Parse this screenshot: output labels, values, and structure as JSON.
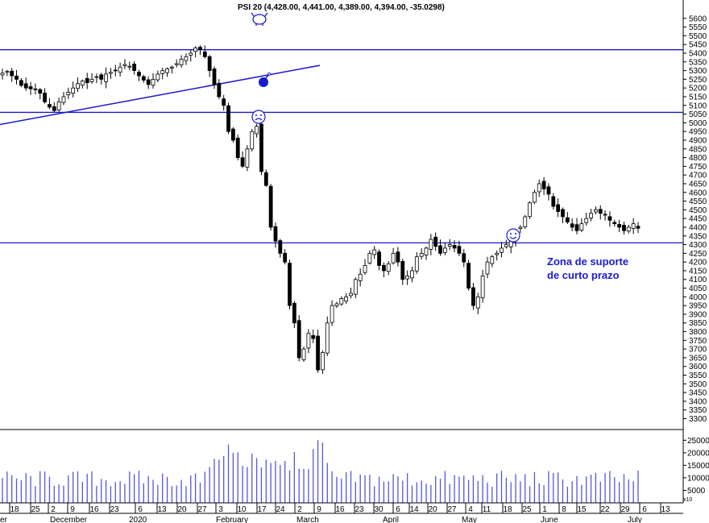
{
  "chart_data": {
    "type": "candlestick",
    "title": "PSI 20 (4,428.00, 4,441.00, 4,389.00, 4,394.00, -35.0298)",
    "price_axis": {
      "ylim": [
        3270,
        5650
      ],
      "ticks": [
        3300,
        3350,
        3400,
        3450,
        3500,
        3550,
        3600,
        3650,
        3700,
        3750,
        3800,
        3850,
        3900,
        3950,
        4000,
        4050,
        4100,
        4150,
        4200,
        4250,
        4300,
        4350,
        4400,
        4450,
        4500,
        4550,
        4600,
        4650,
        4700,
        4750,
        4800,
        4850,
        4900,
        4950,
        5000,
        5050,
        5100,
        5150,
        5200,
        5250,
        5300,
        5350,
        5400,
        5450,
        5500,
        5550,
        5600
      ]
    },
    "volume_axis": {
      "ylim": [
        0,
        28000
      ],
      "ticks": [
        5000,
        10000,
        15000,
        20000,
        25000
      ],
      "tick_labels": [
        "5000",
        "10000",
        "15000",
        "20000",
        "25000"
      ],
      "unit_label": "x10"
    },
    "x_day_ticks": [
      "18",
      "25",
      "2",
      "9",
      "16",
      "23",
      "6",
      "13",
      "20",
      "27",
      "3",
      "10",
      "17",
      "24",
      "2",
      "9",
      "16",
      "23",
      "30",
      "6",
      "14",
      "20",
      "27",
      "4",
      "11",
      "18",
      "25",
      "1",
      "8",
      "15",
      "22",
      "29",
      "6",
      "13"
    ],
    "x_month_labels": [
      "er",
      "December",
      "2020",
      "February",
      "March",
      "April",
      "May",
      "June",
      "July"
    ],
    "horizontal_lines": [
      5420,
      5060,
      4310
    ],
    "trendline": {
      "start": [
        "Nov 18 2019",
        4990
      ],
      "end": [
        "Feb 28 2020",
        5330
      ]
    },
    "annotations": {
      "support_label": [
        "Zona de suporte",
        "de curto prazo"
      ]
    },
    "series": {
      "close": [
        5285,
        5295,
        5270,
        5250,
        5215,
        5200,
        5195,
        5190,
        5170,
        5120,
        5090,
        5070,
        5120,
        5150,
        5175,
        5200,
        5225,
        5240,
        5230,
        5250,
        5265,
        5250,
        5280,
        5290,
        5300,
        5320,
        5335,
        5325,
        5300,
        5270,
        5245,
        5220,
        5250,
        5280,
        5300,
        5310,
        5320,
        5340,
        5365,
        5380,
        5400,
        5430,
        5420,
        5380,
        5300,
        5220,
        5150,
        5100,
        4950,
        4900,
        4800,
        4750,
        4850,
        4950,
        4980,
        4720,
        4640,
        4400,
        4320,
        4250,
        4200,
        3950,
        3850,
        3650,
        3700,
        3790,
        3760,
        3580,
        3680,
        3850,
        3950,
        3960,
        3990,
        4000,
        4020,
        4100,
        4130,
        4180,
        4250,
        4270,
        4180,
        4150,
        4190,
        4250,
        4200,
        4100,
        4120,
        4150,
        4230,
        4250,
        4280,
        4330,
        4290,
        4250,
        4280,
        4300,
        4280,
        4250,
        4200,
        4050,
        3950,
        4000,
        4120,
        4200,
        4230,
        4250,
        4280,
        4300,
        4320,
        4380,
        4400,
        4460,
        4540,
        4600,
        4650,
        4620,
        4590,
        4520,
        4490,
        4460,
        4430,
        4400,
        4380,
        4420,
        4450,
        4480,
        4500,
        4480,
        4470,
        4440,
        4420,
        4400,
        4380,
        4400,
        4420,
        4394
      ]
    }
  }
}
